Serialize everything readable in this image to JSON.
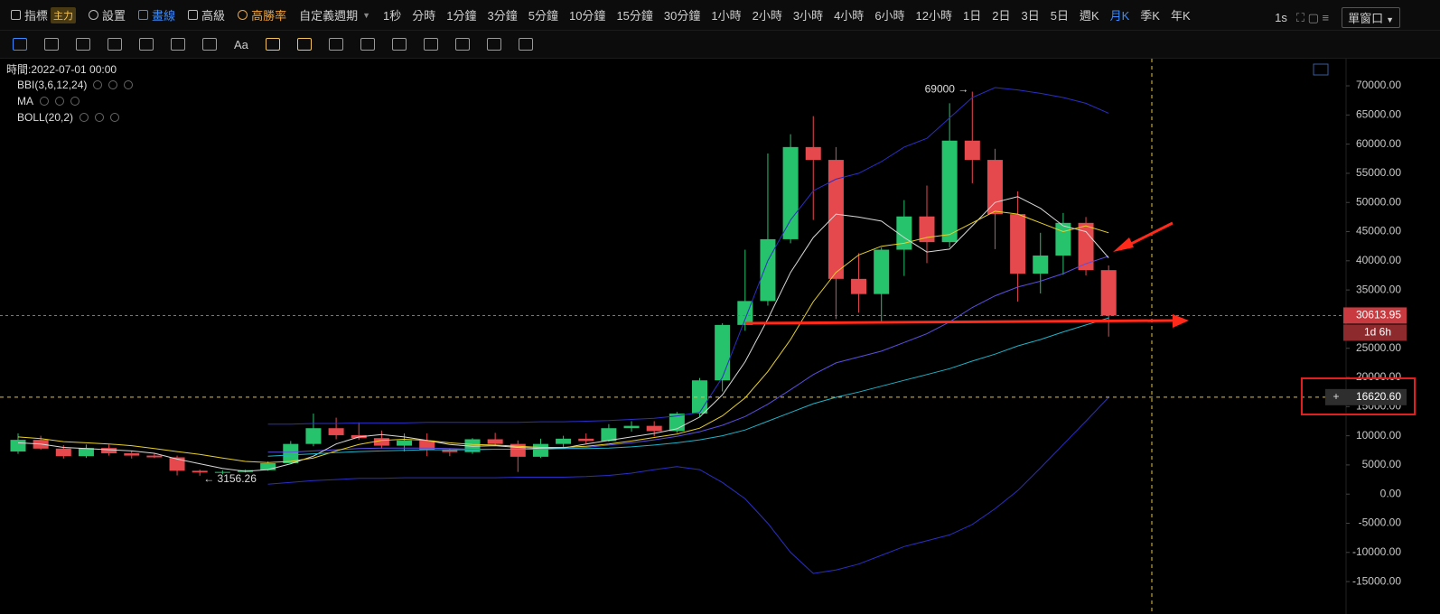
{
  "toolbar": {
    "indicator": "指標",
    "indicator_badge": "主力",
    "settings": "設置",
    "draw": "畫線",
    "advanced": "高級",
    "win_rate": "高勝率",
    "custom_period": "自定義週期",
    "periods": [
      "1秒",
      "分時",
      "1分鐘",
      "3分鐘",
      "5分鐘",
      "10分鐘",
      "15分鐘",
      "30分鐘",
      "1小時",
      "2小時",
      "3小時",
      "4小時",
      "6小時",
      "12小時",
      "1日",
      "2日",
      "3日",
      "5日",
      "週K",
      "月K",
      "季K",
      "年K"
    ],
    "refresh": "1s",
    "window": "單窗口"
  },
  "tools": {
    "text_tool": "Aa"
  },
  "info": {
    "time": "時間:2022-07-01 00:00"
  },
  "chart_data": {
    "type": "candlestick",
    "up_color": "#27c26c",
    "down_color": "#e5484d",
    "open": [
      7300,
      9300,
      7800,
      6500,
      7900,
      7000,
      6600,
      6300,
      4000,
      3700,
      3800,
      4100,
      5300,
      8600,
      11300,
      10100,
      9600,
      8300,
      9200,
      7600,
      7200,
      9400,
      8600,
      6400,
      8600,
      9500,
      9100,
      11300,
      11700,
      10800,
      13800,
      19500,
      29000,
      33100,
      43700,
      59500,
      57300,
      36900,
      34300,
      41900,
      47600,
      43200,
      60600,
      57300,
      48000,
      37800,
      40900,
      46500,
      38400
    ],
    "high": [
      10400,
      10000,
      8400,
      8500,
      8500,
      7400,
      7000,
      6600,
      4200,
      4100,
      4200,
      5600,
      9100,
      13800,
      13100,
      12300,
      10900,
      10400,
      10400,
      7800,
      9600,
      10500,
      9200,
      9500,
      10000,
      10400,
      12000,
      12500,
      12500,
      14100,
      19900,
      29300,
      41900,
      58400,
      61700,
      64800,
      59500,
      41300,
      42300,
      50400,
      52900,
      67000,
      69000,
      59200,
      51900,
      44800,
      48200,
      47500,
      39200
    ],
    "low": [
      6900,
      7600,
      6100,
      6200,
      6600,
      6100,
      6200,
      3200,
      3156.26,
      3400,
      3700,
      4000,
      5300,
      8200,
      9400,
      9300,
      7800,
      7300,
      6500,
      6500,
      6900,
      8400,
      3800,
      6200,
      8100,
      8700,
      9000,
      10700,
      9900,
      10500,
      13300,
      17600,
      28000,
      32300,
      43000,
      47000,
      30000,
      31100,
      29300,
      37400,
      39600,
      42300,
      53300,
      42000,
      33000,
      34400,
      37600,
      37500,
      27000
    ],
    "close": [
      9300,
      7800,
      6500,
      7900,
      7000,
      6600,
      6300,
      4000,
      3700,
      3800,
      4100,
      5300,
      8600,
      11300,
      10100,
      9600,
      8300,
      9200,
      7600,
      7200,
      9400,
      8600,
      6400,
      8600,
      9500,
      9100,
      11300,
      11700,
      10800,
      13800,
      19500,
      29000,
      33100,
      43700,
      59500,
      57300,
      36900,
      34300,
      41900,
      47600,
      43200,
      60600,
      57300,
      48000,
      37800,
      40900,
      46500,
      38400,
      30613.95
    ],
    "indicators": [
      {
        "label": "BBI(3,6,12,24)",
        "lines": [
          {
            "color": "#5b4fe0",
            "values": [
              null,
              null,
              null,
              null,
              null,
              null,
              null,
              null,
              null,
              null,
              null,
              7200,
              7200,
              7400,
              7600,
              7800,
              7900,
              7900,
              7900,
              7800,
              7700,
              7700,
              7700,
              7700,
              7800,
              8000,
              8400,
              8800,
              9300,
              9900,
              10700,
              11800,
              13300,
              15400,
              17900,
              20500,
              22500,
              23500,
              24500,
              26000,
              27500,
              29500,
              32000,
              34000,
              35500,
              36500,
              37800,
              39500,
              40800
            ]
          }
        ]
      },
      {
        "label": "MA",
        "lines": [
          {
            "color": "#d9d9d9",
            "values": [
              8800,
              8600,
              8000,
              7800,
              7600,
              7400,
              7000,
              6000,
              5200,
              4400,
              3900,
              4200,
              5200,
              6500,
              8600,
              9800,
              10200,
              9800,
              9200,
              8500,
              8200,
              8300,
              8000,
              7800,
              7900,
              8600,
              9200,
              9800,
              10400,
              11200,
              13200,
              17000,
              22700,
              30000,
              38000,
              44000,
              48000,
              47500,
              46800,
              44000,
              41500,
              42000,
              46000,
              50000,
              51000,
              49000,
              46000,
              45000,
              40500
            ]
          },
          {
            "color": "#e8d02a",
            "values": [
              9800,
              9500,
              9000,
              8800,
              8600,
              8300,
              7800,
              7300,
              6800,
              6200,
              5600,
              5400,
              5600,
              6200,
              7400,
              8500,
              9200,
              9400,
              9200,
              8800,
              8500,
              8400,
              8200,
              8000,
              8000,
              8200,
              8600,
              9100,
              9700,
              10300,
              11300,
              13400,
              16500,
              21000,
              26500,
              33000,
              38000,
              41000,
              42500,
              43000,
              44000,
              44500,
              46500,
              48500,
              48000,
              46500,
              45000,
              46000,
              44800
            ]
          },
          {
            "color": "#1fb3c8",
            "values": [
              null,
              null,
              null,
              null,
              null,
              null,
              null,
              null,
              null,
              null,
              null,
              6500,
              6700,
              6900,
              7100,
              7300,
              7400,
              7500,
              7600,
              7600,
              7600,
              7700,
              7700,
              7700,
              7800,
              7800,
              7900,
              8100,
              8400,
              8800,
              9300,
              10000,
              11000,
              12500,
              14000,
              15500,
              16600,
              17500,
              18500,
              19500,
              20500,
              21500,
              22800,
              24000,
              25400,
              26500,
              27800,
              29000,
              30200
            ]
          }
        ]
      },
      {
        "label": "BOLL(20,2)",
        "lines": [
          {
            "color": "#2b2fc4",
            "values": [
              null,
              null,
              null,
              null,
              null,
              null,
              null,
              null,
              null,
              null,
              null,
              12000,
              12000,
              12100,
              12100,
              12200,
              12200,
              12200,
              12300,
              12300,
              12300,
              12300,
              12300,
              12400,
              12400,
              12500,
              12600,
              12800,
              13000,
              13400,
              14000,
              20000,
              30000,
              40000,
              47000,
              52000,
              54000,
              55000,
              57000,
              59500,
              61000,
              64500,
              68000,
              69700,
              69300,
              68700,
              68000,
              67000,
              65300
            ]
          },
          {
            "color": "#2b2fc4",
            "values": [
              null,
              null,
              null,
              null,
              null,
              null,
              null,
              null,
              null,
              null,
              null,
              1700,
              2000,
              2300,
              2500,
              2700,
              2700,
              2800,
              2800,
              2800,
              2800,
              2800,
              2900,
              2900,
              2900,
              3000,
              3200,
              3600,
              4200,
              4700,
              4200,
              2000,
              -800,
              -5000,
              -10000,
              -13600,
              -13000,
              -12000,
              -10500,
              -9000,
              -8000,
              -7000,
              -5200,
              -2500,
              600,
              4500,
              8500,
              12500,
              16600
            ]
          }
        ]
      }
    ],
    "annotations": [
      {
        "label": "69000 →",
        "value": 69000
      },
      {
        "label": "← 3156.26",
        "value": 3156.26
      }
    ],
    "last_price": 30613.95,
    "countdown": "1d 6h",
    "crosshair": {
      "value": 16620.6,
      "label": "16620.60"
    },
    "ylim": [
      -18700,
      74340
    ],
    "yticks": [
      {
        "value": 70000,
        "label": "70000.00"
      },
      {
        "value": 65000,
        "label": "65000.00"
      },
      {
        "value": 60000,
        "label": "60000.00"
      },
      {
        "value": 55000,
        "label": "55000.00"
      },
      {
        "value": 50000,
        "label": "50000.00"
      },
      {
        "value": 45000,
        "label": "45000.00"
      },
      {
        "value": 40000,
        "label": "40000.00"
      },
      {
        "value": 35000,
        "label": "35000.00"
      },
      {
        "value": 30000,
        "label": "30000.00"
      },
      {
        "value": 25000,
        "label": "25000.00"
      },
      {
        "value": 20000,
        "label": "20000.00"
      },
      {
        "value": 15000,
        "label": "15000.00"
      },
      {
        "value": 10000,
        "label": "10000.00"
      },
      {
        "value": 5000,
        "label": "5000.00"
      },
      {
        "value": 0,
        "label": "0.00"
      },
      {
        "value": -5000,
        "label": "-5000.00"
      },
      {
        "value": -10000,
        "label": "-10000.00"
      },
      {
        "value": -15000,
        "label": "-15000.00"
      }
    ]
  }
}
